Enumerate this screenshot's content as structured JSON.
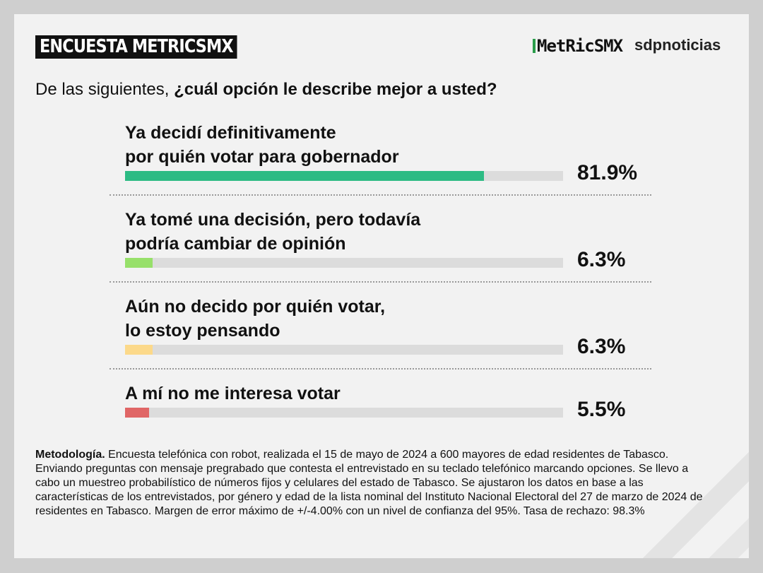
{
  "chart_data": {
    "type": "bar",
    "orientation": "horizontal",
    "header": "ENCUESTA METRICSMX",
    "logos": [
      "MetRicSMX",
      "sdpnoticias"
    ],
    "question": [
      "De las siguientes, ",
      "¿cuál opción le describe mejor a usted?"
    ],
    "categories": [
      "Ya decidí definitivamente\npor quién votar para gobernador",
      "Ya tomé una decisión, pero todavía\npodría cambiar de opinión",
      "Aún no decido por quién votar,\nlo estoy pensando",
      "A mí no me interesa votar"
    ],
    "values": [
      81.9,
      6.3,
      6.3,
      5.5
    ],
    "value_labels": [
      "81.9%",
      "6.3%",
      "6.3%",
      "5.5%"
    ],
    "colors": [
      "#2dbb84",
      "#97e06a",
      "#fcd98a",
      "#e06666"
    ],
    "xlim": [
      0,
      100
    ],
    "footer": {
      "label": "Metodología.",
      "text": "Encuesta telefónica con robot, realizada el 15 de mayo de 2024 a 600 mayores de edad residentes de Tabasco. Enviando preguntas con mensaje pregrabado que contesta el entrevistado en su teclado telefónico marcando opciones. Se llevo a cabo un muestreo probabilístico de números fijos y celulares del estado de Tabasco. Se ajustaron los datos en base a las características de los entrevistados, por género y edad de la lista nominal del Instituto Nacional Electoral del 27 de marzo de 2024 de residentes en Tabasco. Margen de error máximo de +/-4.00% con un nivel de confianza del 95%. Tasa de rechazo: 98.3%"
    }
  }
}
